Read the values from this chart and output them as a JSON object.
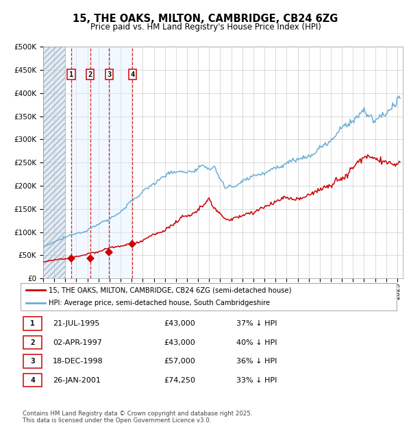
{
  "title_line1": "15, THE OAKS, MILTON, CAMBRIDGE, CB24 6ZG",
  "title_line2": "Price paid vs. HM Land Registry's House Price Index (HPI)",
  "ylim": [
    0,
    500000
  ],
  "yticks": [
    0,
    50000,
    100000,
    150000,
    200000,
    250000,
    300000,
    350000,
    400000,
    450000,
    500000
  ],
  "xlim_start": 1993.0,
  "xlim_end": 2025.5,
  "sale_dates": [
    1995.55,
    1997.25,
    1998.96,
    2001.07
  ],
  "sale_prices": [
    43000,
    43000,
    57000,
    74250
  ],
  "sale_labels": [
    "1",
    "2",
    "3",
    "4"
  ],
  "hpi_color": "#6aaed6",
  "price_paid_color": "#cc0000",
  "sale_marker_color": "#cc0000",
  "vertical_line_color": "#cc0000",
  "grid_color": "#cccccc",
  "bg_hatch_end": 1995.0,
  "legend_line1": "15, THE OAKS, MILTON, CAMBRIDGE, CB24 6ZG (semi-detached house)",
  "legend_line2": "HPI: Average price, semi-detached house, South Cambridgeshire",
  "table_rows": [
    [
      "1",
      "21-JUL-1995",
      "£43,000",
      "37% ↓ HPI"
    ],
    [
      "2",
      "02-APR-1997",
      "£43,000",
      "40% ↓ HPI"
    ],
    [
      "3",
      "18-DEC-1998",
      "£57,000",
      "36% ↓ HPI"
    ],
    [
      "4",
      "26-JAN-2001",
      "£74,250",
      "33% ↓ HPI"
    ]
  ],
  "footer": "Contains HM Land Registry data © Crown copyright and database right 2025.\nThis data is licensed under the Open Government Licence v3.0.",
  "fig_width": 6.0,
  "fig_height": 6.2,
  "dpi": 100
}
